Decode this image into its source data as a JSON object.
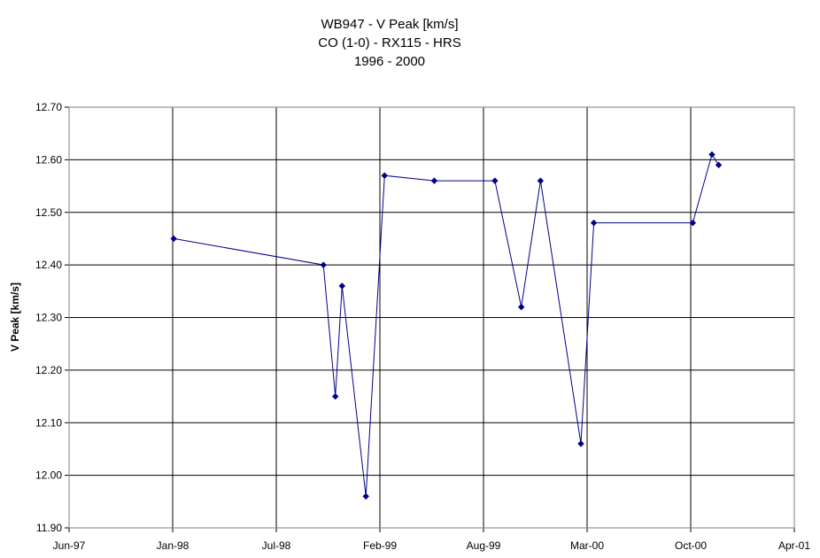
{
  "chart_data": {
    "type": "line",
    "title_lines": [
      "WB947 - V Peak [km/s]",
      "CO (1-0) - RX115 - HRS",
      "1996 - 2000"
    ],
    "xlabel": "",
    "ylabel": "V Peak [km/s]",
    "x_ticks": [
      "Jun-97",
      "Jan-98",
      "Jul-98",
      "Feb-99",
      "Aug-99",
      "Mar-00",
      "Oct-00",
      "Apr-01"
    ],
    "y_ticks": [
      "11.90",
      "12.00",
      "12.10",
      "12.20",
      "12.30",
      "12.40",
      "12.50",
      "12.60",
      "12.70"
    ],
    "ylim": [
      11.9,
      12.7
    ],
    "xlim": [
      "1997-06-01",
      "2001-04-01"
    ],
    "grid": true,
    "legend": "none",
    "series": [
      {
        "color": "#00008b",
        "x": [
          "1997-12-20",
          "1998-10-05",
          "1998-10-28",
          "1998-11-10",
          "1998-12-26",
          "1999-01-31",
          "1999-05-07",
          "1999-09-01",
          "1999-10-22",
          "1999-11-28",
          "2000-02-14",
          "2000-03-10",
          "2000-09-17",
          "2000-10-24",
          "2000-11-06"
        ],
        "values": [
          12.45,
          12.4,
          12.15,
          12.36,
          11.96,
          12.57,
          12.56,
          12.56,
          12.32,
          12.56,
          12.06,
          12.48,
          12.48,
          12.61,
          12.59
        ]
      }
    ]
  }
}
